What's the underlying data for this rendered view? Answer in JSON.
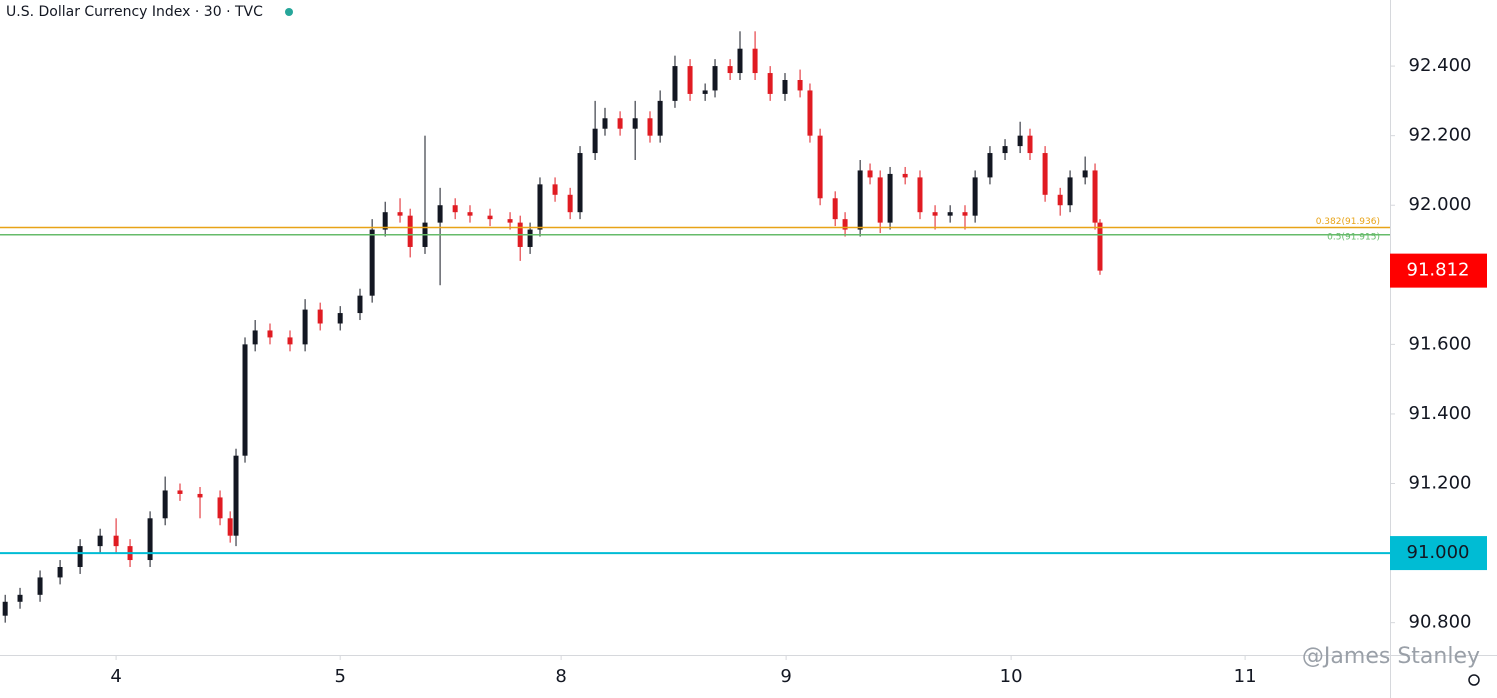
{
  "chart_data": {
    "type": "candlestick",
    "title": "U.S. Dollar Currency Index · 30 · TVC",
    "watermark": "@James Stanley",
    "up_color": "#131722",
    "down_color": "#e01b22",
    "x": [
      3.507,
      3.573,
      3.662,
      3.751,
      3.84,
      3.929,
      4.0,
      4.062,
      4.151,
      4.218,
      4.284,
      4.373,
      4.462,
      4.507,
      4.533,
      4.573,
      4.618,
      4.684,
      4.773,
      4.84,
      4.907,
      4.996,
      5.084,
      5.138,
      5.196,
      5.262,
      5.307,
      5.373,
      5.44,
      5.507,
      5.573,
      5.662,
      5.751,
      5.796,
      5.84,
      5.884,
      5.951,
      6.018,
      6.062,
      6.129,
      6.173,
      6.24,
      6.307,
      6.373,
      6.418,
      6.484,
      6.551,
      6.618,
      6.662,
      6.729,
      6.773,
      6.84,
      6.907,
      6.973,
      7.04,
      7.084,
      7.129,
      7.196,
      7.24,
      7.307,
      7.351,
      7.396,
      7.44,
      7.507,
      7.573,
      7.64,
      7.707,
      7.773,
      7.818,
      7.884,
      7.951,
      8.018,
      8.062,
      8.129,
      8.196,
      8.24,
      8.307,
      8.351,
      8.373
    ],
    "open": [
      90.82,
      90.86,
      90.88,
      90.93,
      90.96,
      91.02,
      91.05,
      91.02,
      90.98,
      91.1,
      91.18,
      91.17,
      91.16,
      91.1,
      91.05,
      91.28,
      91.6,
      91.64,
      91.62,
      91.6,
      91.7,
      91.66,
      91.69,
      91.74,
      91.93,
      91.98,
      91.97,
      91.88,
      91.95,
      92.0,
      91.98,
      91.97,
      91.96,
      91.95,
      91.88,
      91.93,
      92.06,
      92.03,
      91.98,
      92.15,
      92.22,
      92.25,
      92.22,
      92.25,
      92.2,
      92.3,
      92.4,
      92.32,
      92.33,
      92.4,
      92.38,
      92.45,
      92.38,
      92.32,
      92.36,
      92.33,
      92.2,
      92.02,
      91.96,
      91.93,
      92.1,
      92.08,
      91.95,
      92.09,
      92.08,
      91.98,
      91.97,
      91.98,
      91.97,
      92.08,
      92.15,
      92.17,
      92.2,
      92.15,
      92.03,
      92.0,
      92.08,
      92.1,
      91.95
    ],
    "high": [
      90.88,
      90.9,
      90.95,
      90.98,
      91.04,
      91.07,
      91.1,
      91.04,
      91.12,
      91.22,
      91.2,
      91.19,
      91.18,
      91.12,
      91.3,
      91.62,
      91.67,
      91.66,
      91.64,
      91.73,
      91.72,
      91.71,
      91.76,
      91.96,
      92.01,
      92.02,
      91.99,
      92.2,
      92.05,
      92.02,
      92.0,
      91.99,
      91.98,
      91.97,
      91.95,
      92.08,
      92.08,
      92.05,
      92.17,
      92.3,
      92.28,
      92.27,
      92.3,
      92.27,
      92.33,
      92.43,
      92.42,
      92.35,
      92.42,
      92.42,
      92.5,
      92.5,
      92.4,
      92.38,
      92.39,
      92.35,
      92.22,
      92.04,
      91.98,
      92.13,
      92.12,
      92.1,
      92.11,
      92.11,
      92.1,
      92.0,
      92.0,
      92.0,
      92.1,
      92.17,
      92.19,
      92.24,
      92.22,
      92.17,
      92.05,
      92.1,
      92.14,
      92.12,
      91.96
    ],
    "low": [
      90.8,
      90.84,
      90.86,
      90.91,
      90.94,
      91.0,
      91.0,
      90.96,
      90.96,
      91.08,
      91.15,
      91.1,
      91.08,
      91.03,
      91.02,
      91.26,
      91.58,
      91.6,
      91.58,
      91.58,
      91.64,
      91.64,
      91.67,
      91.72,
      91.91,
      91.95,
      91.85,
      91.86,
      91.77,
      91.96,
      91.95,
      91.94,
      91.93,
      91.84,
      91.86,
      91.91,
      92.01,
      91.96,
      91.96,
      92.13,
      92.2,
      92.2,
      92.13,
      92.18,
      92.18,
      92.28,
      92.3,
      92.3,
      92.31,
      92.36,
      92.36,
      92.36,
      92.3,
      92.3,
      92.31,
      92.18,
      92.0,
      91.94,
      91.91,
      91.91,
      92.06,
      91.92,
      91.93,
      92.06,
      91.96,
      91.93,
      91.95,
      91.93,
      91.95,
      92.06,
      92.13,
      92.15,
      92.13,
      92.01,
      91.97,
      91.98,
      92.06,
      91.93,
      91.8
    ],
    "close": [
      90.86,
      90.88,
      90.93,
      90.96,
      91.02,
      91.05,
      91.02,
      90.98,
      91.1,
      91.18,
      91.17,
      91.16,
      91.1,
      91.05,
      91.28,
      91.6,
      91.64,
      91.62,
      91.6,
      91.7,
      91.66,
      91.69,
      91.74,
      91.93,
      91.98,
      91.97,
      91.88,
      91.95,
      92.0,
      91.98,
      91.97,
      91.96,
      91.95,
      91.88,
      91.93,
      92.06,
      92.03,
      91.98,
      92.15,
      92.22,
      92.25,
      92.22,
      92.25,
      92.2,
      92.3,
      92.4,
      92.32,
      92.33,
      92.4,
      92.38,
      92.45,
      92.38,
      92.32,
      92.36,
      92.33,
      92.2,
      92.02,
      91.96,
      91.93,
      92.1,
      92.08,
      91.95,
      92.09,
      92.08,
      91.98,
      91.97,
      91.98,
      91.97,
      92.08,
      92.15,
      92.17,
      92.2,
      92.15,
      92.03,
      92.0,
      92.08,
      92.1,
      91.95,
      91.812
    ],
    "xlim": [
      3.484,
      9.662
    ],
    "xticks": [
      4,
      {
        "value": 4.996,
        "label": "5"
      },
      {
        "value": 5.978,
        "label": "8"
      },
      {
        "value": 6.978,
        "label": "9"
      },
      {
        "value": 7.978,
        "label": "10"
      },
      {
        "value": 9.018,
        "label": "11"
      }
    ],
    "ylim": [
      90.707,
      92.59
    ],
    "yticks": [
      {
        "value": 90.8,
        "label": "90.800"
      },
      {
        "value": 91.2,
        "label": "91.200"
      },
      {
        "value": 91.4,
        "label": "91.400"
      },
      {
        "value": 91.6,
        "label": "91.600"
      },
      {
        "value": 92.0,
        "label": "92.000"
      },
      {
        "value": 92.2,
        "label": "92.200"
      },
      {
        "value": 92.4,
        "label": "92.400"
      }
    ],
    "hlines": [
      {
        "value": 91,
        "label": "91.000",
        "color": "#00bcd4"
      },
      {
        "value": 91.936,
        "label": "0.382(91.936)",
        "color": "#e8a317"
      },
      {
        "value": 91.915,
        "label": "0.5(91.915)",
        "color": "#66bb6a"
      }
    ],
    "last_price": {
      "value": 91.812,
      "color": "#ff0000"
    }
  }
}
